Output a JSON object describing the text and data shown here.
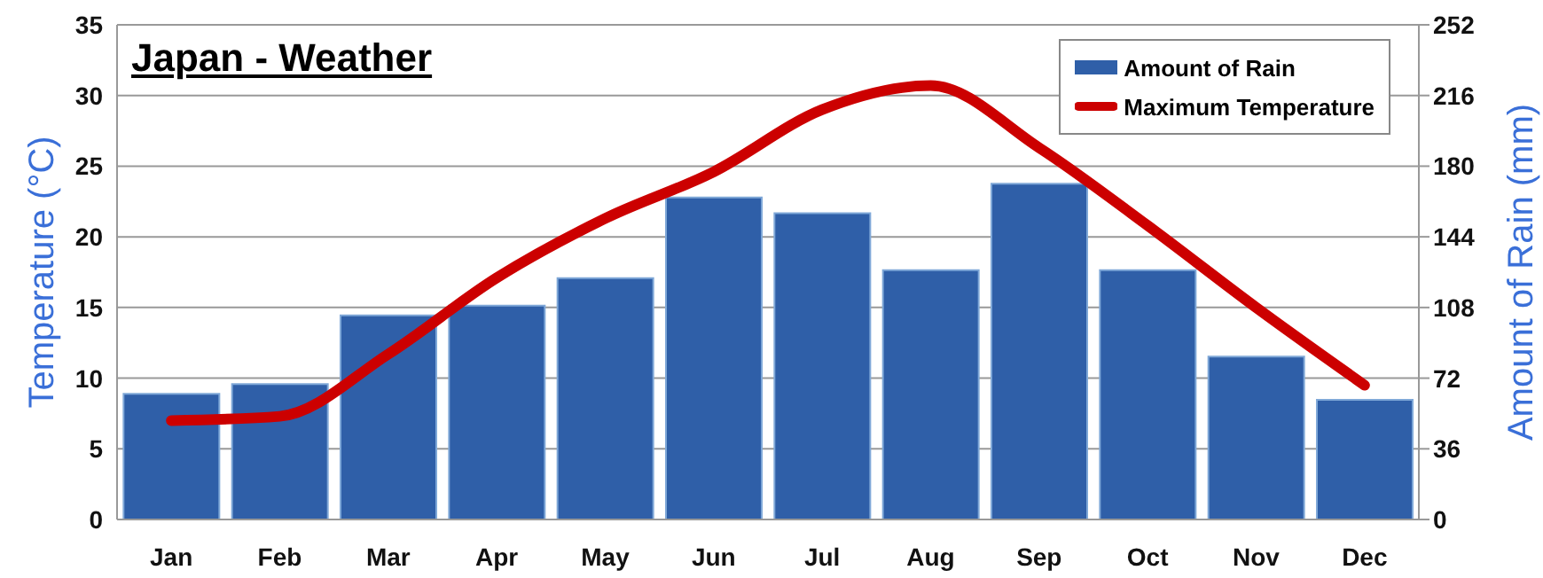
{
  "chart_data": {
    "type": "bar",
    "title": "Japan - Weather",
    "ylabel": "Temperature (°C)",
    "y2label": "Amount of Rain (mm)",
    "categories": [
      "Jan",
      "Feb",
      "Mar",
      "Apr",
      "May",
      "Jun",
      "Jul",
      "Aug",
      "Sep",
      "Oct",
      "Nov",
      "Dec"
    ],
    "series": [
      {
        "name": "Amount of Rain",
        "axis": "y2",
        "color": "#2f5fa8",
        "values": [
          64,
          69,
          104,
          109,
          123,
          164,
          156,
          127,
          171,
          127,
          83,
          61
        ]
      },
      {
        "name": "Maximum Temperature",
        "type": "line",
        "axis": "y",
        "color": "#cc0000",
        "values": [
          7,
          7.3,
          11.7,
          17.1,
          21.3,
          24.6,
          29,
          30.7,
          26.3,
          20.8,
          15,
          9.5
        ]
      }
    ],
    "ylim": [
      0,
      35
    ],
    "yticks": [
      0,
      5,
      10,
      15,
      20,
      25,
      30,
      35
    ],
    "y2lim": [
      0,
      252
    ],
    "y2ticks": [
      0,
      36,
      72,
      108,
      144,
      180,
      216,
      252
    ],
    "grid": "y",
    "legend": "top right",
    "marker": "none",
    "line_style": "solid"
  }
}
